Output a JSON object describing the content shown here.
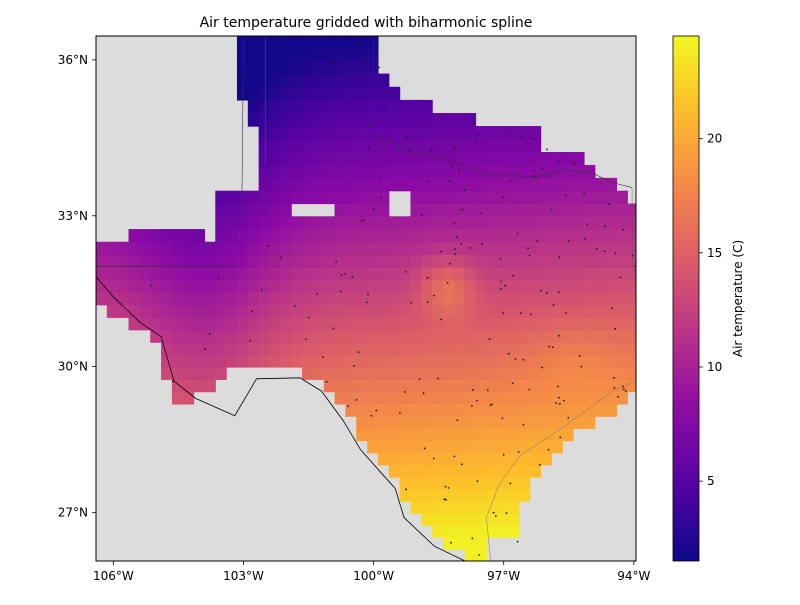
{
  "chart_data": {
    "type": "heatmap",
    "title": "Air temperature gridded with biharmonic spline",
    "xlabel": "",
    "ylabel": "",
    "projection": "mercator",
    "xlim": [
      -106.4,
      -93.95
    ],
    "ylim": [
      25.99,
      36.45
    ],
    "x_ticks": [
      {
        "value": -106,
        "label": "106°W"
      },
      {
        "value": -103,
        "label": "103°W"
      },
      {
        "value": -100,
        "label": "100°W"
      },
      {
        "value": -97,
        "label": "97°W"
      },
      {
        "value": -94,
        "label": "94°W"
      }
    ],
    "y_ticks": [
      {
        "value": 27,
        "label": "27°N"
      },
      {
        "value": 30,
        "label": "30°N"
      },
      {
        "value": 33,
        "label": "33°N"
      },
      {
        "value": 36,
        "label": "36°N"
      }
    ],
    "colormap": "plasma",
    "colorbar": {
      "label": "Air temperature (C)",
      "range": [
        1.5,
        24.5
      ],
      "ticks": [
        5,
        10,
        15,
        20
      ]
    },
    "grid_cell_size_deg": 0.25,
    "field_extremes": {
      "min_approx": 1.8,
      "max_approx": 24.0
    },
    "missing_value_color": "#dcdcdc",
    "station_count_approx": 190
  }
}
